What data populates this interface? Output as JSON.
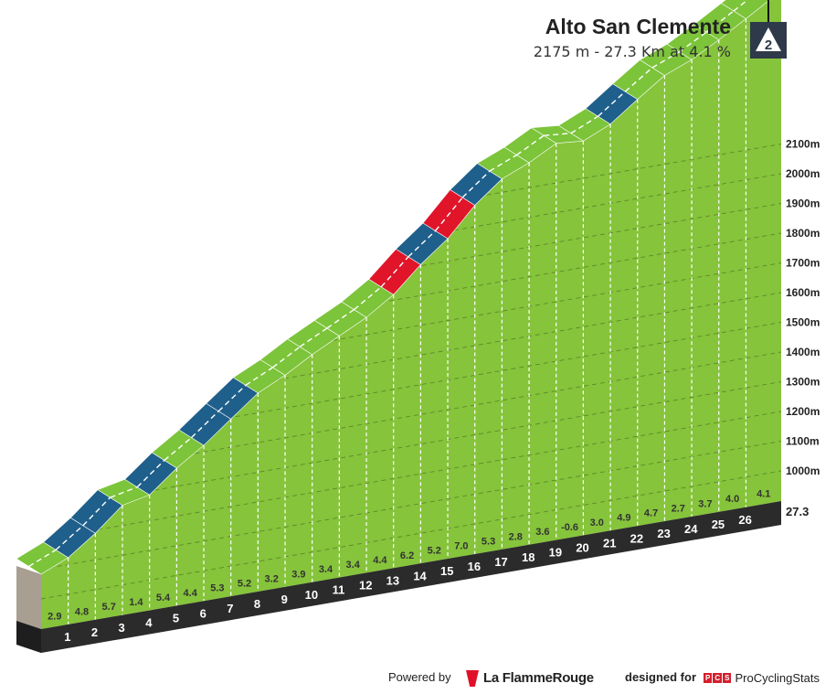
{
  "header": {
    "climb_name": "Alto San Clemente",
    "climb_stats": "2175 m - 27.3 Km at 4.1 %",
    "category": "2"
  },
  "footer": {
    "powered_by": "Powered by",
    "brand": "La FlammeRouge",
    "designed_for": "designed for",
    "pcs_letters": [
      "P",
      "C",
      "S"
    ],
    "pcs_name": "ProCyclingStats"
  },
  "chart_data": {
    "type": "area",
    "xlabel": "",
    "ylabel": "",
    "x_unit": "km",
    "y_unit": "m",
    "total_distance_label": "27.3",
    "km_markers": [
      "1",
      "2",
      "3",
      "4",
      "5",
      "6",
      "7",
      "8",
      "9",
      "10",
      "11",
      "12",
      "13",
      "14",
      "15",
      "16",
      "17",
      "18",
      "19",
      "20",
      "21",
      "22",
      "23",
      "24",
      "25",
      "26"
    ],
    "gradients": [
      "2.9",
      "4.8",
      "5.7",
      "1.4",
      "5.4",
      "4.4",
      "5.3",
      "5.2",
      "3.2",
      "3.9",
      "3.4",
      "3.4",
      "4.4",
      "6.2",
      "5.2",
      "7.0",
      "5.3",
      "2.8",
      "3.6",
      "-0.6",
      "3.0",
      "4.9",
      "4.7",
      "2.7",
      "3.7",
      "4.0",
      "4.1"
    ],
    "gradient_values": [
      2.9,
      4.8,
      5.7,
      1.4,
      5.4,
      4.4,
      5.3,
      5.2,
      3.2,
      3.9,
      3.4,
      3.4,
      4.4,
      6.2,
      5.2,
      7.0,
      5.3,
      2.8,
      3.6,
      -0.6,
      3.0,
      4.9,
      4.7,
      2.7,
      3.7,
      4.0,
      4.1
    ],
    "elevation_ticks": [
      1000,
      1100,
      1200,
      1300,
      1400,
      1500,
      1600,
      1700,
      1800,
      1900,
      2000,
      2100
    ],
    "elevation_tick_unit": "m",
    "ylim": [
      1000,
      2175
    ],
    "summit_elevation": 2175,
    "gradient_colors": {
      "easy": "#7cc43a",
      "medium": "#1f5f8b",
      "hard": "#e0152a"
    },
    "surface_colors": {
      "face": "#86c43b",
      "road_dark": "#2b2b2b",
      "base_side": "#a89f92"
    }
  }
}
